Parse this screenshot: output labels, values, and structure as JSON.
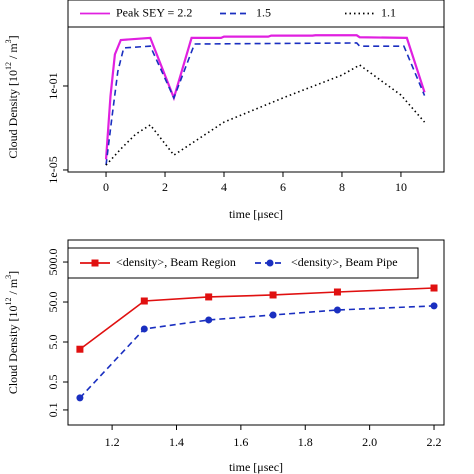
{
  "chart_data": [
    {
      "type": "line",
      "log_y": true,
      "ylabel": [
        "Cloud Density [10",
        "12",
        " / m",
        "3",
        "]"
      ],
      "xlabel": "time [μsec]",
      "xlim": [
        -1.29,
        11.46
      ],
      "xticks": [
        0,
        2,
        4,
        6,
        8,
        10
      ],
      "ylim": [
        8e-06,
        1000
      ],
      "yticks": [
        {
          "value": 1e-05,
          "label": "1e-05"
        },
        {
          "value": 0.1,
          "label": "1e-01"
        }
      ],
      "legend": "top",
      "series": [
        {
          "name": "Peak SEY = 2.2",
          "color": "#e020e0",
          "linestyle": "solid",
          "x": [
            0,
            0.15,
            0.3,
            0.5,
            1.5,
            2.3,
            2.9,
            3.9,
            4.0,
            5.5,
            5.6,
            7.0,
            7.1,
            8.5,
            8.6,
            10.2,
            10.8
          ],
          "values": [
            3.2e-05,
            0.032,
            3.2,
            15.5,
            19.5,
            0.027,
            19.5,
            19.5,
            22.4,
            22.4,
            25,
            25,
            26,
            26,
            21,
            19.5,
            0.05
          ]
        },
        {
          "name": "1.5",
          "color": "#1a2fc0",
          "linestyle": "dashed",
          "x": [
            0,
            0.2,
            0.4,
            0.6,
            1.5,
            2.3,
            3.0,
            8.5,
            8.6,
            10.1,
            10.8
          ],
          "values": [
            1.7e-05,
            0.0032,
            0.5,
            6.5,
            7.9,
            0.027,
            10,
            11.2,
            7.9,
            7.9,
            0.035
          ]
        },
        {
          "name": "1.1",
          "color": "#000000",
          "linestyle": "dotted",
          "x": [
            0,
            0.5,
            1,
            1.5,
            2.3,
            4,
            6,
            8,
            8.6,
            10,
            10.8
          ],
          "values": [
            1.7e-05,
            0.0001,
            0.0005,
            0.0014,
            5.1e-05,
            0.0019,
            0.027,
            0.33,
            1,
            0.037,
            0.0019
          ]
        }
      ]
    },
    {
      "type": "line",
      "log_y": true,
      "ylabel": [
        "Cloud Density [10",
        "12",
        " / m",
        "3",
        "]"
      ],
      "xlabel": "time [μsec]",
      "x": [
        1.1,
        1.3,
        1.5,
        1.7,
        1.9,
        2.2
      ],
      "xlim": [
        1.063,
        2.231
      ],
      "xticks": [
        1.2,
        1.4,
        1.6,
        1.8,
        {
          "value": 2.0,
          "label": "2.0"
        },
        2.2
      ],
      "ylim": [
        0.042,
        1778
      ],
      "yticks": [
        0.1,
        0.5,
        {
          "value": 5,
          "label": "5.0"
        },
        {
          "value": 50,
          "label": "50.0"
        },
        {
          "value": 500,
          "label": "500.0"
        }
      ],
      "legend": "top",
      "series": [
        {
          "name": "<density>, Beam Region",
          "color": "#e01010",
          "linestyle": "solid",
          "marker": "square",
          "values": [
            3.3,
            53,
            67,
            75,
            89,
            112
          ]
        },
        {
          "name": "<density>, Beam Pipe",
          "color": "#1a2fc0",
          "linestyle": "dashed",
          "marker": "circle",
          "values": [
            0.2,
            10.6,
            17.8,
            23.7,
            31.6,
            40
          ]
        }
      ]
    }
  ]
}
